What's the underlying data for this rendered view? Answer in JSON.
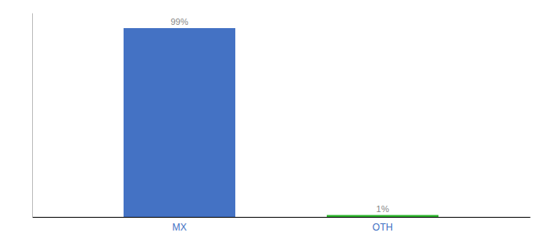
{
  "chart_data": {
    "type": "bar",
    "categories": [
      "MX",
      "OTH"
    ],
    "values": [
      99,
      1
    ],
    "value_labels": [
      "99%",
      "1%"
    ],
    "colors": [
      "#4472c4",
      "#2db52d"
    ],
    "ylim": [
      0,
      107
    ],
    "data_labels": true,
    "tick_labels": "x",
    "grid": false
  }
}
